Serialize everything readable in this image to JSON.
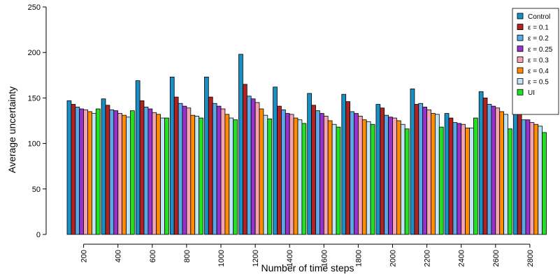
{
  "chart_data": {
    "type": "bar",
    "xlabel": "Number of time steps",
    "ylabel": "Average uncertainty",
    "ylim": [
      0,
      250
    ],
    "yticks": [
      0,
      50,
      100,
      150,
      200,
      250
    ],
    "grid": false,
    "legend_position": "top-right",
    "categories": [
      "200",
      "400",
      "600",
      "800",
      "1000",
      "1200",
      "1400",
      "1600",
      "1800",
      "2000",
      "2200",
      "2400",
      "2600",
      "2800"
    ],
    "series": [
      {
        "name": "Control",
        "color": "#1a8fc4",
        "values": [
          147,
          149,
          169,
          173,
          173,
          198,
          162,
          155,
          154,
          143,
          160,
          133,
          157,
          141
        ]
      },
      {
        "name": "ε = 0.1",
        "color": "#b22222",
        "values": [
          143,
          142,
          147,
          151,
          151,
          165,
          141,
          142,
          146,
          139,
          143,
          128,
          150,
          132
        ]
      },
      {
        "name": "ε = 0.2",
        "color": "#5aa8e6",
        "values": [
          140,
          137,
          140,
          144,
          144,
          152,
          137,
          136,
          135,
          131,
          144,
          123,
          143,
          126
        ]
      },
      {
        "name": "ε = 0.25",
        "color": "#9932cc",
        "values": [
          138,
          136,
          138,
          141,
          141,
          149,
          133,
          133,
          133,
          129,
          140,
          122,
          141,
          126
        ]
      },
      {
        "name": "ε = 0.3",
        "color": "#f4a3b0",
        "values": [
          137,
          133,
          134,
          139,
          138,
          145,
          132,
          130,
          130,
          128,
          137,
          121,
          139,
          123
        ]
      },
      {
        "name": "ε = 0.4",
        "color": "#ff8c00",
        "values": [
          135,
          131,
          132,
          131,
          132,
          138,
          128,
          125,
          126,
          125,
          133,
          117,
          135,
          121
        ]
      },
      {
        "name": "ε = 0.5",
        "color": "#bfe3f7",
        "values": [
          133,
          129,
          128,
          130,
          128,
          131,
          126,
          121,
          124,
          121,
          132,
          117,
          132,
          119
        ]
      },
      {
        "name": "UI",
        "color": "#22e022",
        "values": [
          138,
          136,
          128,
          128,
          126,
          127,
          122,
          118,
          121,
          116,
          118,
          128,
          116,
          112
        ]
      }
    ]
  }
}
